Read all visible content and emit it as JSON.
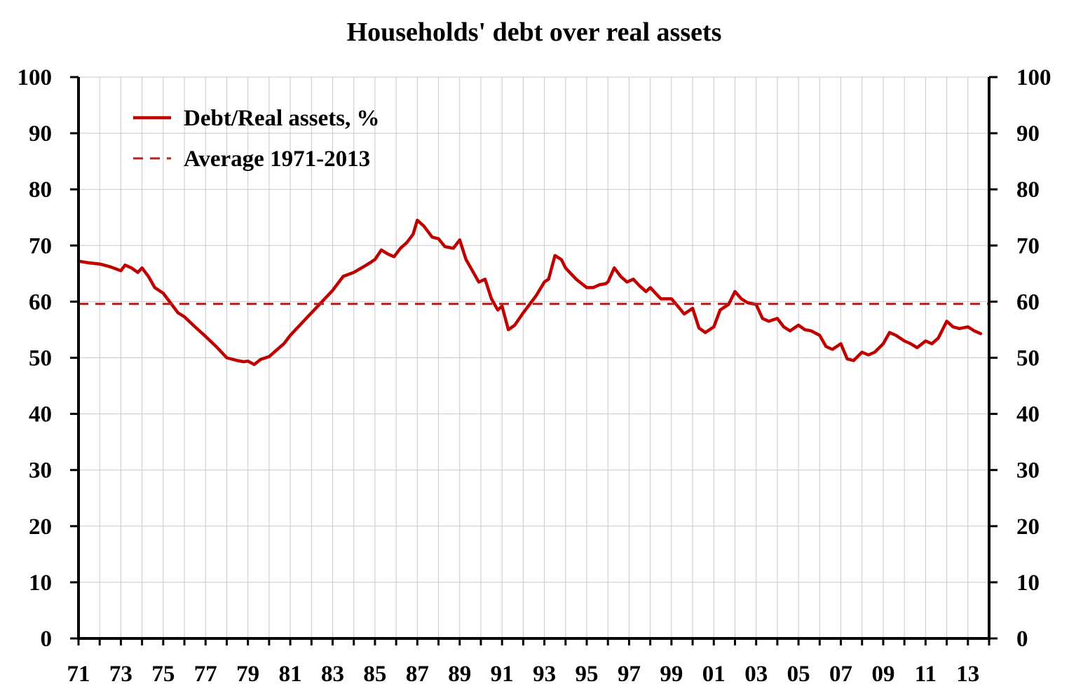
{
  "chart_data": {
    "type": "line",
    "title": "Households' debt over real assets",
    "xlabel": "",
    "ylabel": "",
    "ylim": [
      0,
      100
    ],
    "xlim": [
      1971,
      2014
    ],
    "y_ticks": [
      "0",
      "10",
      "20",
      "30",
      "40",
      "50",
      "60",
      "70",
      "80",
      "90",
      "100"
    ],
    "x_ticks": [
      {
        "x": 1971,
        "label": "71"
      },
      {
        "x": 1973,
        "label": "73"
      },
      {
        "x": 1975,
        "label": "75"
      },
      {
        "x": 1977,
        "label": "77"
      },
      {
        "x": 1979,
        "label": "79"
      },
      {
        "x": 1981,
        "label": "81"
      },
      {
        "x": 1983,
        "label": "83"
      },
      {
        "x": 1985,
        "label": "85"
      },
      {
        "x": 1987,
        "label": "87"
      },
      {
        "x": 1989,
        "label": "89"
      },
      {
        "x": 1991,
        "label": "91"
      },
      {
        "x": 1993,
        "label": "93"
      },
      {
        "x": 1995,
        "label": "95"
      },
      {
        "x": 1997,
        "label": "97"
      },
      {
        "x": 1999,
        "label": "99"
      },
      {
        "x": 2001,
        "label": "01"
      },
      {
        "x": 2003,
        "label": "03"
      },
      {
        "x": 2005,
        "label": "05"
      },
      {
        "x": 2007,
        "label": "07"
      },
      {
        "x": 2009,
        "label": "09"
      },
      {
        "x": 2011,
        "label": "11"
      },
      {
        "x": 2013,
        "label": "13"
      }
    ],
    "grid": true,
    "legend_position": "top-left",
    "series": [
      {
        "name": "Debt/Real assets, %",
        "style": "solid",
        "color": "#c00000",
        "x": [
          1971.0,
          1971.5,
          1972.0,
          1972.5,
          1973.0,
          1973.2,
          1973.5,
          1973.8,
          1974.0,
          1974.3,
          1974.6,
          1975.0,
          1975.3,
          1975.7,
          1976.0,
          1976.5,
          1977.0,
          1977.5,
          1978.0,
          1978.5,
          1978.8,
          1979.0,
          1979.3,
          1979.6,
          1980.0,
          1980.3,
          1980.7,
          1981.0,
          1981.5,
          1982.0,
          1982.5,
          1983.0,
          1983.5,
          1984.0,
          1984.5,
          1984.8,
          1985.0,
          1985.3,
          1985.6,
          1985.9,
          1986.2,
          1986.5,
          1986.8,
          1987.0,
          1987.3,
          1987.7,
          1988.0,
          1988.3,
          1988.7,
          1989.0,
          1989.3,
          1989.6,
          1989.9,
          1990.2,
          1990.5,
          1990.8,
          1991.0,
          1991.3,
          1991.6,
          1992.0,
          1992.3,
          1992.6,
          1993.0,
          1993.2,
          1993.5,
          1993.8,
          1994.0,
          1994.5,
          1995.0,
          1995.3,
          1995.6,
          1995.9,
          1996.0,
          1996.3,
          1996.6,
          1996.9,
          1997.2,
          1997.5,
          1997.8,
          1998.0,
          1998.5,
          1999.0,
          1999.3,
          1999.6,
          2000.0,
          2000.3,
          2000.6,
          2001.0,
          2001.3,
          2001.7,
          2002.0,
          2002.3,
          2002.6,
          2003.0,
          2003.3,
          2003.6,
          2004.0,
          2004.3,
          2004.6,
          2005.0,
          2005.3,
          2005.6,
          2006.0,
          2006.3,
          2006.6,
          2007.0,
          2007.3,
          2007.6,
          2008.0,
          2008.3,
          2008.6,
          2009.0,
          2009.3,
          2009.6,
          2010.0,
          2010.3,
          2010.6,
          2011.0,
          2011.3,
          2011.6,
          2012.0,
          2012.3,
          2012.6,
          2013.0,
          2013.3,
          2013.6
        ],
        "y": [
          67.2,
          66.9,
          66.7,
          66.2,
          65.5,
          66.5,
          66.0,
          65.2,
          66.0,
          64.5,
          62.5,
          61.5,
          60.0,
          58.0,
          57.3,
          55.5,
          53.8,
          52.0,
          50.0,
          49.5,
          49.3,
          49.4,
          48.8,
          49.7,
          50.2,
          51.2,
          52.5,
          54.0,
          56.0,
          58.0,
          60.0,
          62.0,
          64.5,
          65.2,
          66.3,
          67.0,
          67.5,
          69.2,
          68.5,
          68.0,
          69.5,
          70.5,
          72.0,
          74.5,
          73.5,
          71.5,
          71.2,
          69.8,
          69.5,
          71.0,
          67.5,
          65.5,
          63.5,
          64.0,
          60.5,
          58.5,
          59.2,
          55.0,
          55.8,
          58.0,
          59.5,
          61.0,
          63.5,
          64.0,
          68.2,
          67.5,
          66.0,
          64.0,
          62.5,
          62.5,
          63.0,
          63.2,
          63.5,
          66.0,
          64.5,
          63.5,
          64.0,
          62.8,
          61.8,
          62.5,
          60.5,
          60.5,
          59.2,
          57.8,
          58.8,
          55.3,
          54.5,
          55.5,
          58.5,
          59.5,
          61.8,
          60.5,
          59.8,
          59.5,
          57.0,
          56.5,
          57.0,
          55.5,
          54.8,
          55.8,
          55.0,
          54.8,
          54.0,
          52.0,
          51.5,
          52.5,
          49.8,
          49.5,
          51.0,
          50.5,
          51.0,
          52.5,
          54.5,
          54.0,
          53.0,
          52.5,
          51.8,
          53.0,
          52.5,
          53.5,
          56.5,
          55.5,
          55.2,
          55.5,
          54.8,
          54.3
        ]
      },
      {
        "name": "Average 1971-2013",
        "style": "dashed",
        "color": "#b22222",
        "x": [
          1971.0,
          2014.0
        ],
        "y": [
          59.6,
          59.6
        ]
      }
    ]
  }
}
